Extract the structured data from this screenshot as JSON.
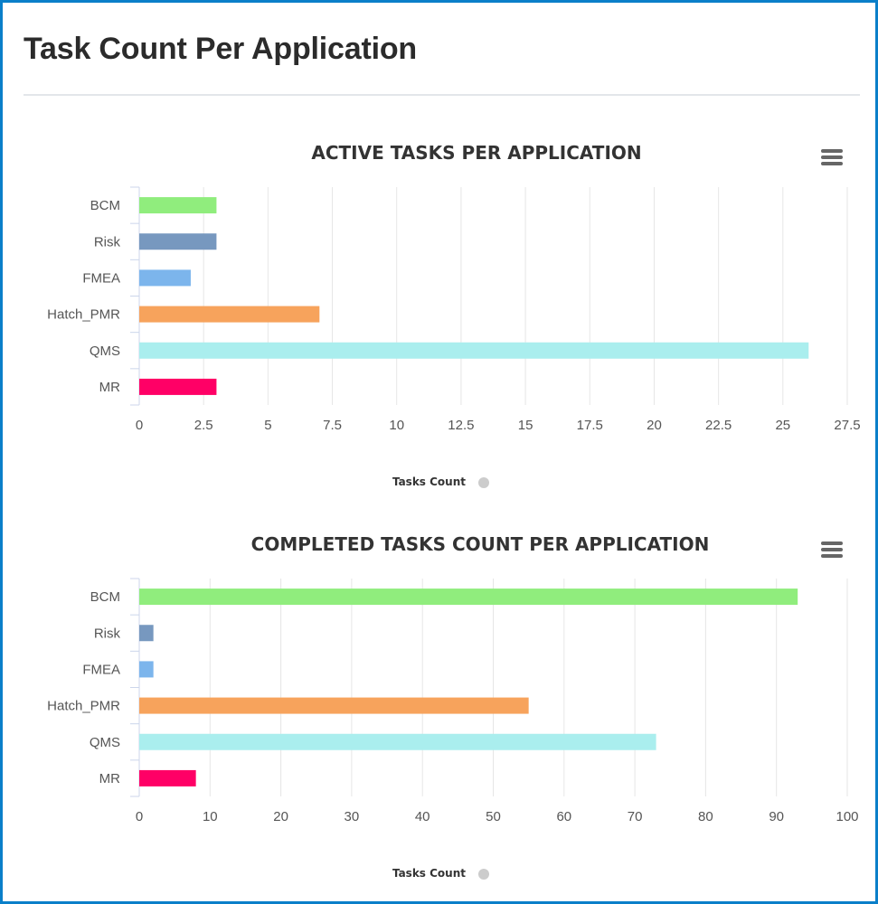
{
  "page": {
    "title": "Task Count Per Application"
  },
  "icons": {
    "menu": "hamburger-menu-icon"
  },
  "colors": {
    "frame_border": "#0a7fc9",
    "BCM": "#90ed7d",
    "Risk": "#7798bf",
    "FMEA": "#7cb5ec",
    "Hatch_PMR": "#f7a35c",
    "QMS": "#aaeeee",
    "MR": "#ff0066",
    "legend_dot": "#cccccc"
  },
  "chart_data": [
    {
      "type": "bar",
      "orientation": "horizontal",
      "title": "ACTIVE TASKS PER APPLICATION",
      "categories": [
        "BCM",
        "Risk",
        "FMEA",
        "Hatch_PMR",
        "QMS",
        "MR"
      ],
      "series": [
        {
          "name": "Tasks Count",
          "values": [
            3,
            3,
            2,
            7,
            26,
            3
          ]
        }
      ],
      "xlim": [
        0,
        27.5
      ],
      "ticks": [
        "0",
        "2.5",
        "5",
        "7.5",
        "10",
        "12.5",
        "15",
        "17.5",
        "20",
        "22.5",
        "25",
        "27.5"
      ],
      "grid": true,
      "legend": "bottom-center",
      "bar_colors": [
        "#90ed7d",
        "#7798bf",
        "#7cb5ec",
        "#f7a35c",
        "#aaeeee",
        "#ff0066"
      ]
    },
    {
      "type": "bar",
      "orientation": "horizontal",
      "title": "COMPLETED TASKS COUNT PER APPLICATION",
      "categories": [
        "BCM",
        "Risk",
        "FMEA",
        "Hatch_PMR",
        "QMS",
        "MR"
      ],
      "series": [
        {
          "name": "Tasks Count",
          "values": [
            93,
            2,
            2,
            55,
            73,
            8
          ]
        }
      ],
      "xlim": [
        0,
        100
      ],
      "ticks": [
        "0",
        "10",
        "20",
        "30",
        "40",
        "50",
        "60",
        "70",
        "80",
        "90",
        "100"
      ],
      "grid": true,
      "legend": "bottom-center",
      "bar_colors": [
        "#90ed7d",
        "#7798bf",
        "#7cb5ec",
        "#f7a35c",
        "#aaeeee",
        "#ff0066"
      ]
    }
  ]
}
